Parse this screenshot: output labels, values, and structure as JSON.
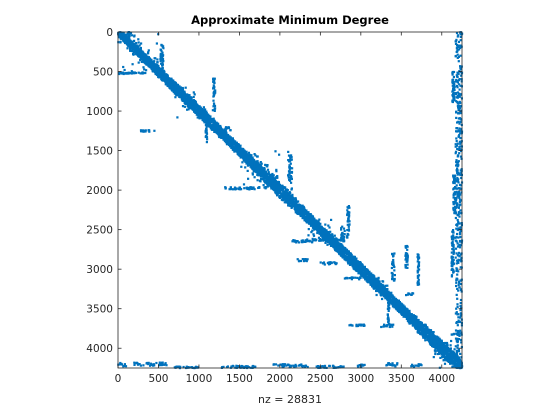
{
  "chart_data": {
    "type": "scatter",
    "title": "Approximate Minimum Degree",
    "xlabel": "nz = 28831",
    "ylabel": "",
    "xlim": [
      0,
      4250
    ],
    "ylim": [
      0,
      4250
    ],
    "y_reversed": true,
    "grid": false,
    "legend": "none",
    "xticks": [
      0,
      500,
      1000,
      1500,
      2000,
      2500,
      3000,
      3500,
      4000
    ],
    "yticks": [
      0,
      500,
      1000,
      1500,
      2000,
      2500,
      3000,
      3500,
      4000
    ],
    "marker_color": "#0072BD",
    "diagonal_band": {
      "from": 0,
      "to": 4250,
      "width": [
        [
          0,
          45
        ],
        [
          500,
          60
        ],
        [
          1000,
          70
        ],
        [
          1500,
          60
        ],
        [
          2000,
          80
        ],
        [
          2500,
          60
        ],
        [
          3000,
          70
        ],
        [
          3500,
          60
        ],
        [
          4000,
          90
        ],
        [
          4250,
          60
        ]
      ]
    },
    "blocks": [
      {
        "x": [
          0,
          500
        ],
        "y": [
          0,
          500
        ]
      },
      {
        "x": [
          700,
          1100
        ],
        "y": [
          700,
          1100
        ]
      },
      {
        "x": [
          1500,
          2000
        ],
        "y": [
          1500,
          2000
        ]
      },
      {
        "x": [
          2300,
          2700
        ],
        "y": [
          2300,
          2700
        ]
      },
      {
        "x": [
          3100,
          3400
        ],
        "y": [
          3100,
          3400
        ]
      },
      {
        "x": [
          3900,
          4250
        ],
        "y": [
          3900,
          4250
        ]
      }
    ],
    "segments": [
      {
        "x": [
          0,
          150
        ],
        "y": [
          0,
          60
        ]
      },
      {
        "x": [
          120,
          150
        ],
        "y": [
          0,
          200
        ]
      },
      {
        "x": [
          0,
          350
        ],
        "y": [
          510,
          530
        ]
      },
      {
        "x": [
          520,
          560
        ],
        "y": [
          150,
          500
        ]
      },
      {
        "x": [
          1170,
          1200
        ],
        "y": [
          580,
          1000
        ]
      },
      {
        "x": [
          280,
          450
        ],
        "y": [
          1240,
          1260
        ]
      },
      {
        "x": [
          1260,
          1400
        ],
        "y": [
          1200,
          1250
        ]
      },
      {
        "x": [
          1080,
          1100
        ],
        "y": [
          1000,
          1400
        ]
      },
      {
        "x": [
          2100,
          2150
        ],
        "y": [
          1500,
          2000
        ]
      },
      {
        "x": [
          1300,
          1750
        ],
        "y": [
          1960,
          1990
        ]
      },
      {
        "x": [
          1800,
          1950
        ],
        "y": [
          1930,
          1970
        ]
      },
      {
        "x": [
          2830,
          2860
        ],
        "y": [
          2200,
          2600
        ]
      },
      {
        "x": [
          2150,
          2430
        ],
        "y": [
          2630,
          2660
        ]
      },
      {
        "x": [
          2400,
          2800
        ],
        "y": [
          2610,
          2640
        ]
      },
      {
        "x": [
          2750,
          2800
        ],
        "y": [
          2450,
          2650
        ]
      },
      {
        "x": [
          2200,
          2350
        ],
        "y": [
          2870,
          2900
        ]
      },
      {
        "x": [
          2500,
          2700
        ],
        "y": [
          2910,
          2940
        ]
      },
      {
        "x": [
          3380,
          3420
        ],
        "y": [
          2800,
          3150
        ]
      },
      {
        "x": [
          3550,
          3580
        ],
        "y": [
          2700,
          3000
        ]
      },
      {
        "x": [
          3700,
          3720
        ],
        "y": [
          2800,
          3200
        ]
      },
      {
        "x": [
          2800,
          3000
        ],
        "y": [
          3100,
          3130
        ]
      },
      {
        "x": [
          2850,
          3050
        ],
        "y": [
          3700,
          3720
        ]
      },
      {
        "x": [
          3250,
          3400
        ],
        "y": [
          3700,
          3730
        ]
      },
      {
        "x": [
          3330,
          3350
        ],
        "y": [
          3400,
          3700
        ]
      },
      {
        "x": [
          3550,
          3650
        ],
        "y": [
          3300,
          3330
        ]
      },
      {
        "x": [
          4120,
          4250
        ],
        "y": [
          3800,
          3830
        ]
      },
      {
        "x": [
          0,
          100
        ],
        "y": [
          4180,
          4250
        ]
      },
      {
        "x": [
          200,
          600
        ],
        "y": [
          4180,
          4220
        ]
      },
      {
        "x": [
          700,
          1000
        ],
        "y": [
          4230,
          4250
        ]
      },
      {
        "x": [
          1250,
          1700
        ],
        "y": [
          4220,
          4250
        ]
      },
      {
        "x": [
          1900,
          2350
        ],
        "y": [
          4200,
          4240
        ]
      },
      {
        "x": [
          2450,
          2800
        ],
        "y": [
          4220,
          4250
        ]
      },
      {
        "x": [
          2950,
          3050
        ],
        "y": [
          4200,
          4240
        ]
      },
      {
        "x": [
          3300,
          3450
        ],
        "y": [
          4180,
          4230
        ]
      },
      {
        "x": [
          3600,
          3750
        ],
        "y": [
          4200,
          4240
        ]
      },
      {
        "x": [
          4170,
          4250
        ],
        "y": [
          0,
          4250
        ]
      },
      {
        "x": [
          4130,
          4160
        ],
        "y": [
          500,
          900
        ]
      },
      {
        "x": [
          4120,
          4150
        ],
        "y": [
          2500,
          3100
        ]
      },
      {
        "x": [
          4140,
          4170
        ],
        "y": [
          1800,
          2300
        ]
      }
    ]
  }
}
